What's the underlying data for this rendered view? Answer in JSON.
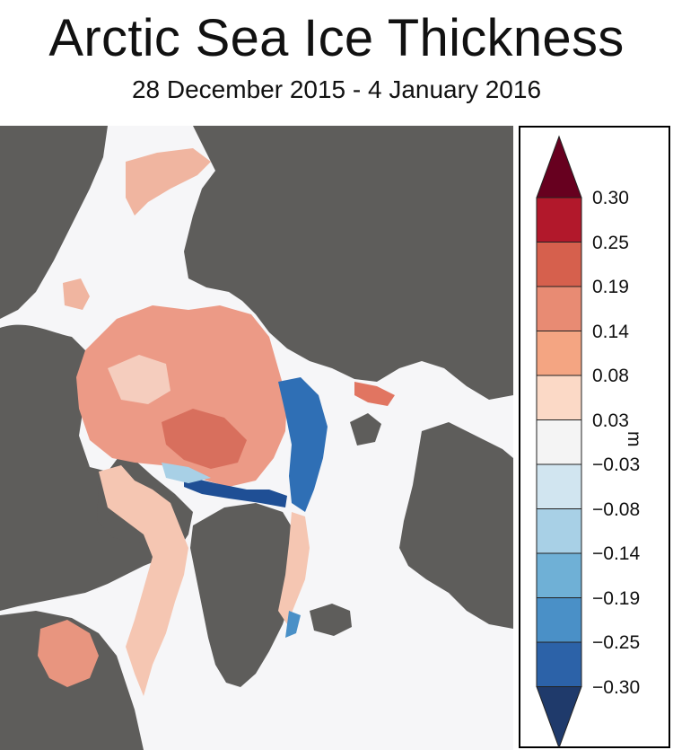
{
  "title": "Arctic Sea Ice Thickness",
  "subtitle": "28 December 2015 - 4 January 2016",
  "legend": {
    "unit": "m",
    "ticks": [
      "0.30",
      "0.25",
      "0.19",
      "0.14",
      "0.08",
      "0.03",
      "−0.03",
      "−0.08",
      "−0.14",
      "−0.19",
      "−0.25",
      "−0.30"
    ],
    "colors": {
      "over": "#67001f",
      "bins": [
        "#b2182b",
        "#d6604d",
        "#e88b73",
        "#f4a582",
        "#fbd9c6",
        "#f4f4f4",
        "#d1e5f0",
        "#a8d0e6",
        "#6fb0d6",
        "#4a90c7",
        "#2c62a8"
      ],
      "under": "#1f3a6b"
    }
  },
  "map": {
    "colors": {
      "land": "#5e5d5b",
      "ocean_no_ice": "#f6f6f8",
      "ice_thicker": "#e58a76",
      "ice_thinner": "#2f6fb5"
    }
  }
}
